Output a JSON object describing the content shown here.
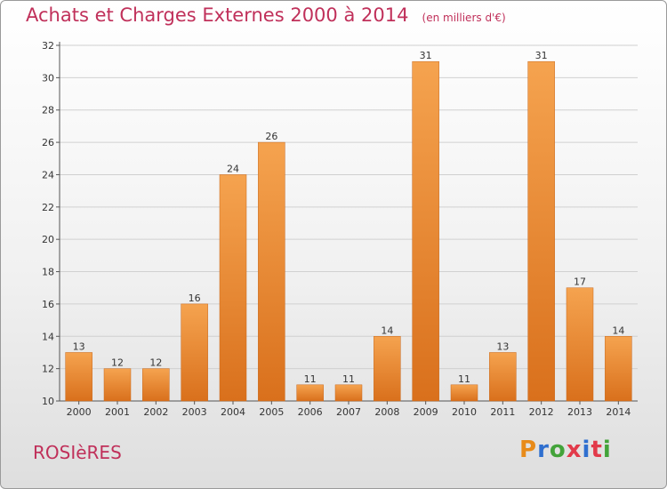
{
  "header": {
    "title": "Achats et Charges Externes 2000 à 2014",
    "unit": "(en milliers d'€)"
  },
  "footer": {
    "commune": "ROSIèRES",
    "brand": "Proxiti",
    "brand_colors": [
      "#e88b1a",
      "#2f6fcf",
      "#43a33a",
      "#e23a4a",
      "#2f6fcf",
      "#e23a4a",
      "#43a33a"
    ]
  },
  "colors": {
    "bar_top": "#f5a34f",
    "bar_bottom": "#d9701c",
    "bar_stroke": "#c8681c",
    "title": "#c0305a",
    "axis": "#555555",
    "grid": "#d0d0d0"
  },
  "chart_data": {
    "type": "bar",
    "title": "Achats et Charges Externes 2000 à 2014",
    "subtitle": "(en milliers d'€)",
    "xlabel": "",
    "ylabel": "",
    "categories": [
      "2000",
      "2001",
      "2002",
      "2003",
      "2004",
      "2005",
      "2006",
      "2007",
      "2008",
      "2009",
      "2010",
      "2011",
      "2012",
      "2013",
      "2014"
    ],
    "values": [
      13,
      12,
      12,
      16,
      24,
      26,
      11,
      11,
      14,
      31,
      11,
      13,
      31,
      17,
      14
    ],
    "ylim": [
      10,
      32
    ],
    "yticks": [
      10,
      12,
      14,
      16,
      18,
      20,
      22,
      24,
      26,
      28,
      30,
      32
    ],
    "grid": true,
    "legend": "none"
  }
}
